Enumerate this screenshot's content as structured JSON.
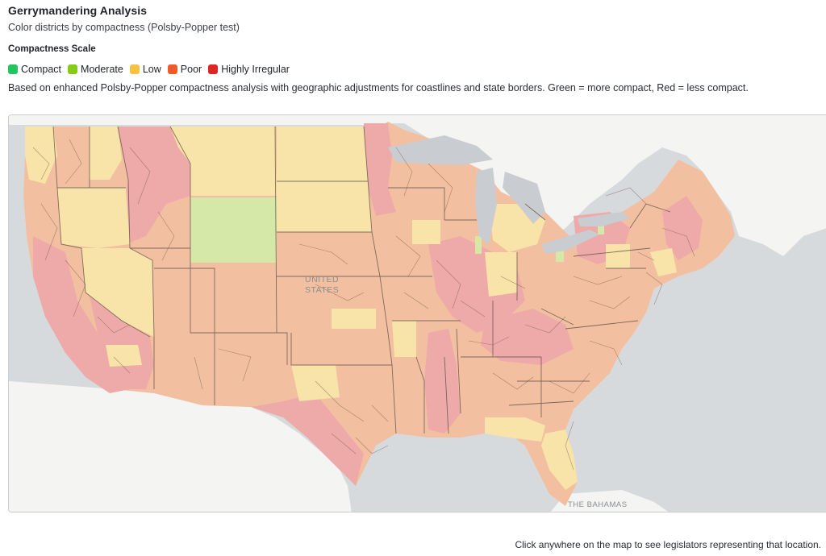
{
  "header": {
    "title": "Gerrymandering Analysis",
    "subtitle": "Color districts by compactness (Polsby-Popper test)"
  },
  "scale": {
    "heading": "Compactness Scale",
    "items": [
      {
        "label": "Compact",
        "color": "#22c55e"
      },
      {
        "label": "Moderate",
        "color": "#84cc16"
      },
      {
        "label": "Low",
        "color": "#f5c242"
      },
      {
        "label": "Poor",
        "color": "#f05a28"
      },
      {
        "label": "Highly Irregular",
        "color": "#dc2626"
      }
    ]
  },
  "description": "Based on enhanced Polsby-Popper compactness analysis with geographic adjustments for coastlines and state borders. Green = more compact, Red = less compact.",
  "map": {
    "labels": {
      "country": [
        "UNITED",
        "STATES"
      ],
      "bahamas": "THE BAHAMAS"
    },
    "fill_colors": {
      "ocean": "#d7dadd",
      "land": "#f4f4f2",
      "lake": "#c9ccd0",
      "low": "#f8e3a8",
      "moderate": "#d5e8a8",
      "poor": "#f2c0a0",
      "irregular": "#eeaaa8"
    }
  },
  "footer": "Click anywhere on the map to see legislators representing that location."
}
